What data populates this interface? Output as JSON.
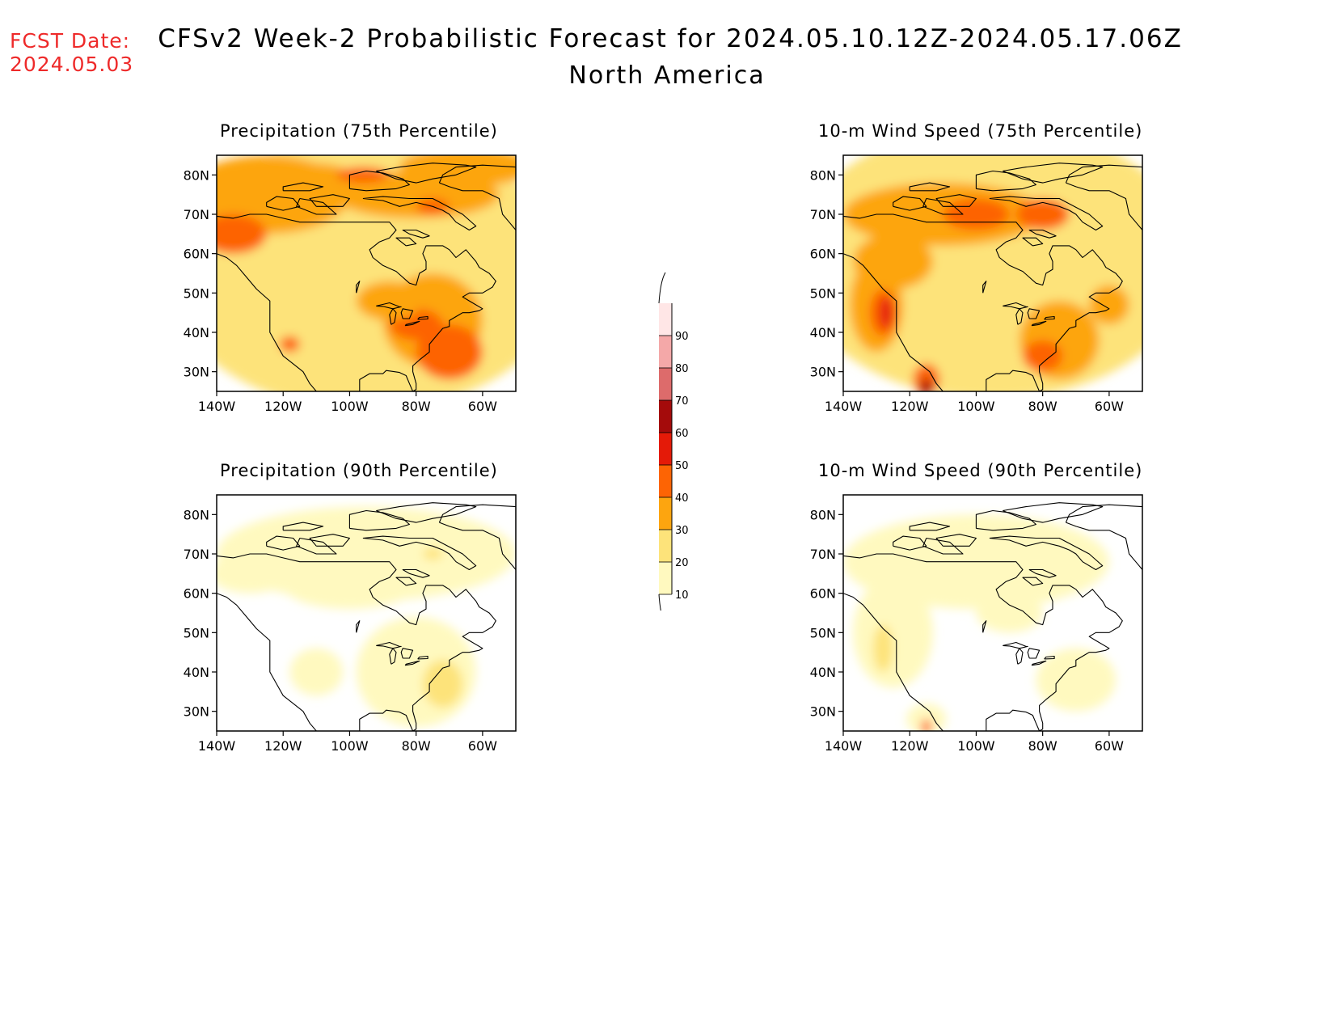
{
  "header": {
    "fcst_label": "FCST Date:",
    "fcst_date": "2024.05.03",
    "title": "CFSv2 Week-2 Probabilistic Forecast for 2024.05.10.12Z-2024.05.17.06Z",
    "subtitle": "North America"
  },
  "map": {
    "lat_labels": [
      "80N",
      "70N",
      "60N",
      "50N",
      "40N",
      "30N"
    ],
    "lon_labels": [
      "140W",
      "120W",
      "100W",
      "80W",
      "60W"
    ]
  },
  "panels": [
    {
      "title": "Precipitation (75th Percentile)"
    },
    {
      "title": "10-m Wind Speed (75th Percentile)"
    },
    {
      "title": "Precipitation (90th Percentile)"
    },
    {
      "title": "10-m Wind Speed (90th Percentile)"
    }
  ],
  "colorbar": {
    "labels": [
      "10",
      "20",
      "30",
      "40",
      "50",
      "60",
      "70",
      "80",
      "90"
    ],
    "colors": [
      "#fff9bf",
      "#fde37a",
      "#fda50f",
      "#fd6404",
      "#e41a08",
      "#a40b0b",
      "#dd6b6b",
      "#f4a8a8",
      "#ffe6e6"
    ]
  }
}
